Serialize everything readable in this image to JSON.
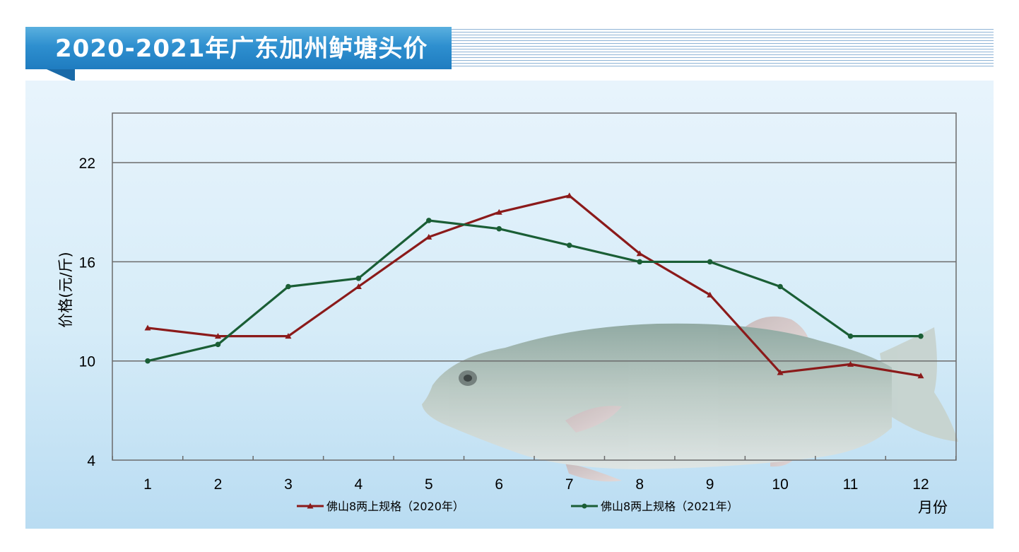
{
  "header": {
    "title": "2020-2021年广东加州鲈塘头价"
  },
  "colors": {
    "series_2020": "#8b1a1a",
    "series_2021": "#1a5e35",
    "grid": "#6b6b6b",
    "banner": "#2e8fcf"
  },
  "chart_data": {
    "type": "line",
    "ylabel": "价格(元/斤)",
    "xlabel": "月份",
    "x": [
      1,
      2,
      3,
      4,
      5,
      6,
      7,
      8,
      9,
      10,
      11,
      12
    ],
    "x_tick_labels": [
      "1",
      "2",
      "3",
      "4",
      "5",
      "6",
      "7",
      "8",
      "9",
      "10",
      "11",
      "12"
    ],
    "y_ticks": [
      4,
      10,
      16,
      22
    ],
    "y_tick_labels": [
      "4",
      "10",
      "16",
      "22"
    ],
    "ylim": [
      4,
      25
    ],
    "grid": "horizontal",
    "legend_position": "bottom",
    "series": [
      {
        "name": "佛山8两上规格（2020年）",
        "marker": "triangle",
        "values": [
          12,
          11.5,
          11.5,
          14.5,
          17.5,
          19,
          20,
          16.5,
          14,
          9.3,
          9.8,
          9.1
        ]
      },
      {
        "name": "佛山8两上规格（2021年）",
        "marker": "circle",
        "values": [
          10,
          11,
          14.5,
          15,
          18.5,
          18,
          17,
          16,
          16,
          14.5,
          11.5,
          11.5
        ]
      }
    ]
  }
}
